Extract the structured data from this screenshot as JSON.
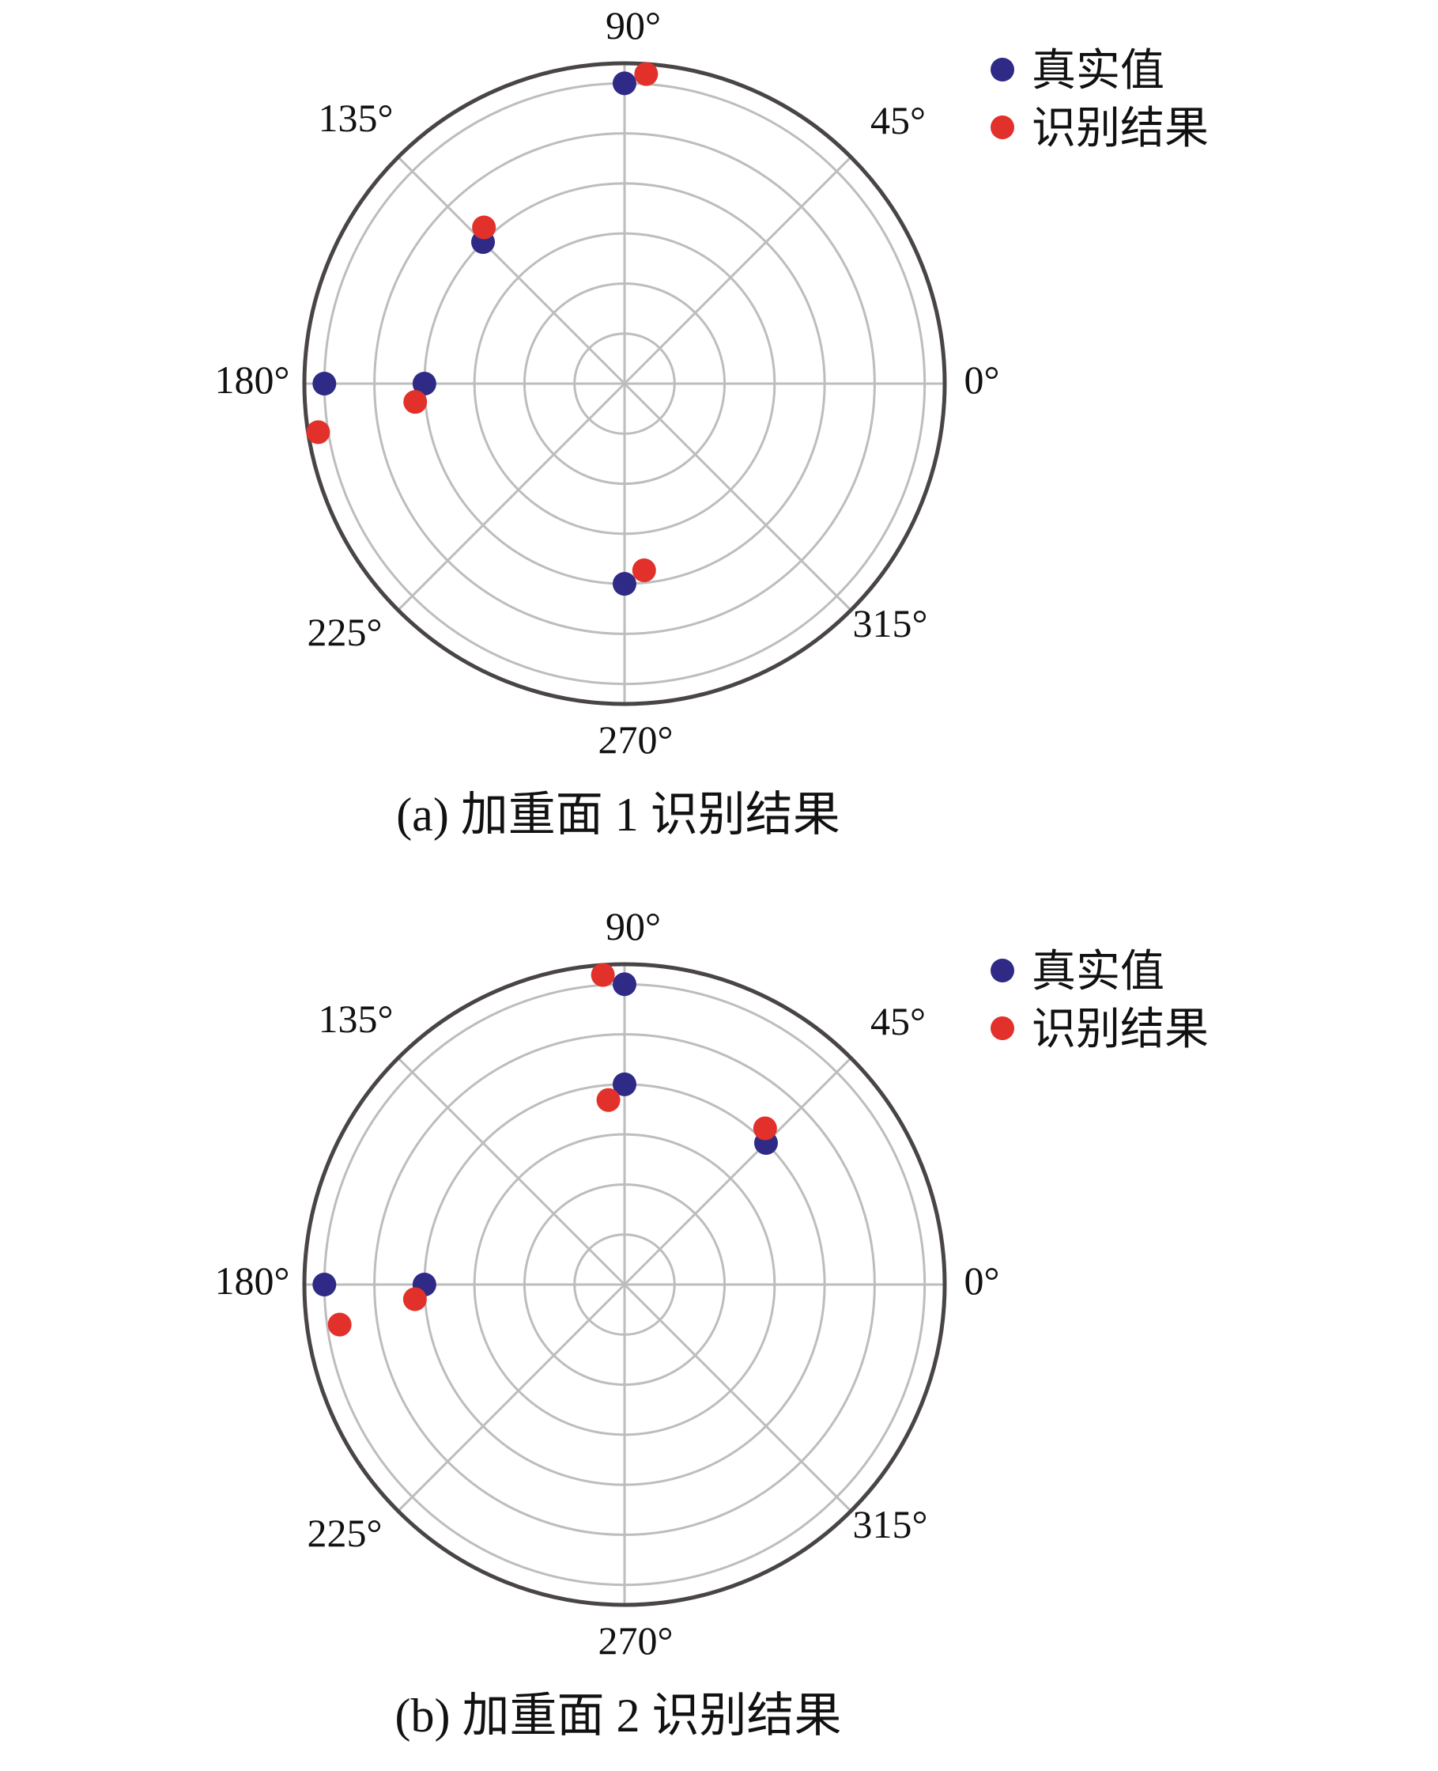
{
  "chart_data": [
    {
      "type": "scatter",
      "subtype": "polar",
      "caption": "(a) 加重面 1 识别结果",
      "angle_ticks": [
        "0°",
        "45°",
        "90°",
        "135°",
        "180°",
        "225°",
        "270°",
        "315°"
      ],
      "angle_tick_values": [
        0,
        45,
        90,
        135,
        180,
        225,
        270,
        315
      ],
      "radial_rings": 6,
      "radial_max": 6.4,
      "radial_tick_labels_shown": false,
      "grid": true,
      "legend_position": "top-right",
      "series": [
        {
          "name": "真实值",
          "color": "#2e2a86",
          "points": [
            {
              "theta": 90,
              "r": 6
            },
            {
              "theta": 135,
              "r": 4
            },
            {
              "theta": 180,
              "r": 6
            },
            {
              "theta": 180,
              "r": 4
            },
            {
              "theta": 270,
              "r": 4
            }
          ]
        },
        {
          "name": "识别结果",
          "color": "#e2302a",
          "points": [
            {
              "theta": 86,
              "r": 6.2
            },
            {
              "theta": 132,
              "r": 4.2
            },
            {
              "theta": 189,
              "r": 6.2
            },
            {
              "theta": 185,
              "r": 4.2
            },
            {
              "theta": 276,
              "r": 3.75
            }
          ]
        }
      ]
    },
    {
      "type": "scatter",
      "subtype": "polar",
      "caption": "(b) 加重面 2 识别结果",
      "angle_ticks": [
        "0°",
        "45°",
        "90°",
        "135°",
        "180°",
        "225°",
        "270°",
        "315°"
      ],
      "angle_tick_values": [
        0,
        45,
        90,
        135,
        180,
        225,
        270,
        315
      ],
      "radial_rings": 6,
      "radial_max": 6.4,
      "radial_tick_labels_shown": false,
      "grid": true,
      "legend_position": "top-right",
      "series": [
        {
          "name": "真实值",
          "color": "#2e2a86",
          "points": [
            {
              "theta": 90,
              "r": 6
            },
            {
              "theta": 90,
              "r": 4
            },
            {
              "theta": 45,
              "r": 4
            },
            {
              "theta": 180,
              "r": 6
            },
            {
              "theta": 180,
              "r": 4
            }
          ]
        },
        {
          "name": "识别结果",
          "color": "#e2302a",
          "points": [
            {
              "theta": 94,
              "r": 6.2
            },
            {
              "theta": 95,
              "r": 3.7
            },
            {
              "theta": 48,
              "r": 4.2
            },
            {
              "theta": 188,
              "r": 5.75
            },
            {
              "theta": 184,
              "r": 4.2
            }
          ]
        }
      ]
    }
  ]
}
